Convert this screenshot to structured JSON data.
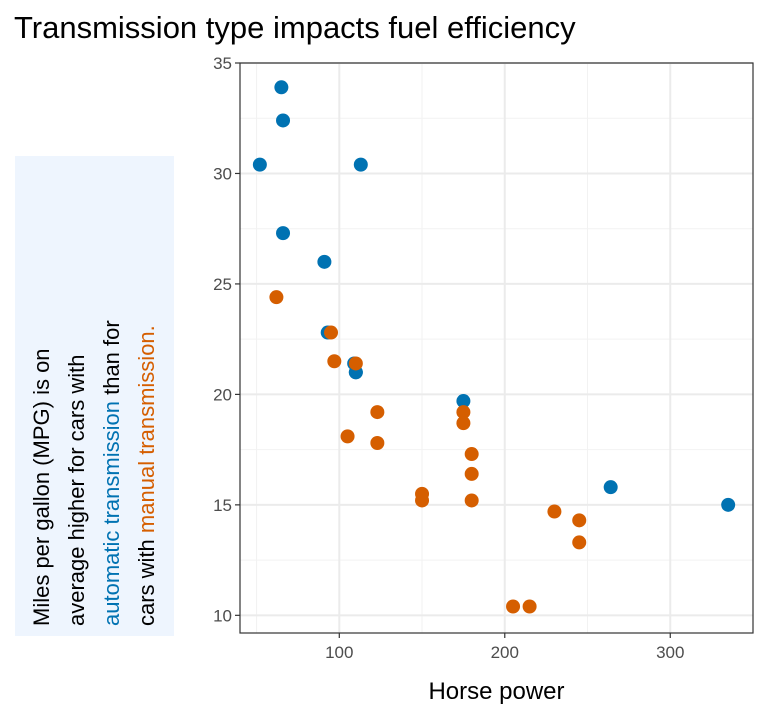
{
  "chart_data": {
    "type": "scatter",
    "title": "Transmission type impacts fuel efficiency",
    "xlabel": "Horse power",
    "ylabel_parts": {
      "line1": "Miles per gallon (MPG) is on",
      "line2": "average higher for cars with",
      "auto_phrase": "automatic transmission",
      "line3_rest": " than for",
      "line4_start": "cars with ",
      "manual_phrase": "manual transmission."
    },
    "xlim": [
      40,
      350
    ],
    "ylim": [
      9.2,
      35
    ],
    "x_ticks": [
      100,
      200,
      300
    ],
    "y_ticks": [
      10,
      15,
      20,
      25,
      30,
      35
    ],
    "grid": true,
    "colors": {
      "automatic": "#0072B2",
      "manual": "#D55E00"
    },
    "series": [
      {
        "group": "automatic",
        "x": [
          52,
          65,
          66,
          66,
          91,
          93,
          109,
          110,
          110,
          113,
          175,
          264,
          335
        ],
        "y": [
          30.4,
          33.9,
          32.4,
          27.3,
          26.0,
          22.8,
          21.4,
          21.0,
          21.0,
          30.4,
          19.7,
          15.8,
          15.0
        ]
      },
      {
        "group": "manual",
        "x": [
          62,
          95,
          97,
          105,
          110,
          123,
          123,
          150,
          150,
          175,
          175,
          180,
          180,
          180,
          205,
          215,
          230,
          245,
          245
        ],
        "y": [
          24.4,
          22.8,
          21.5,
          18.1,
          21.4,
          19.2,
          17.8,
          15.5,
          15.2,
          19.2,
          18.7,
          16.4,
          17.3,
          15.2,
          10.4,
          10.4,
          14.7,
          13.3,
          14.3
        ]
      }
    ]
  }
}
